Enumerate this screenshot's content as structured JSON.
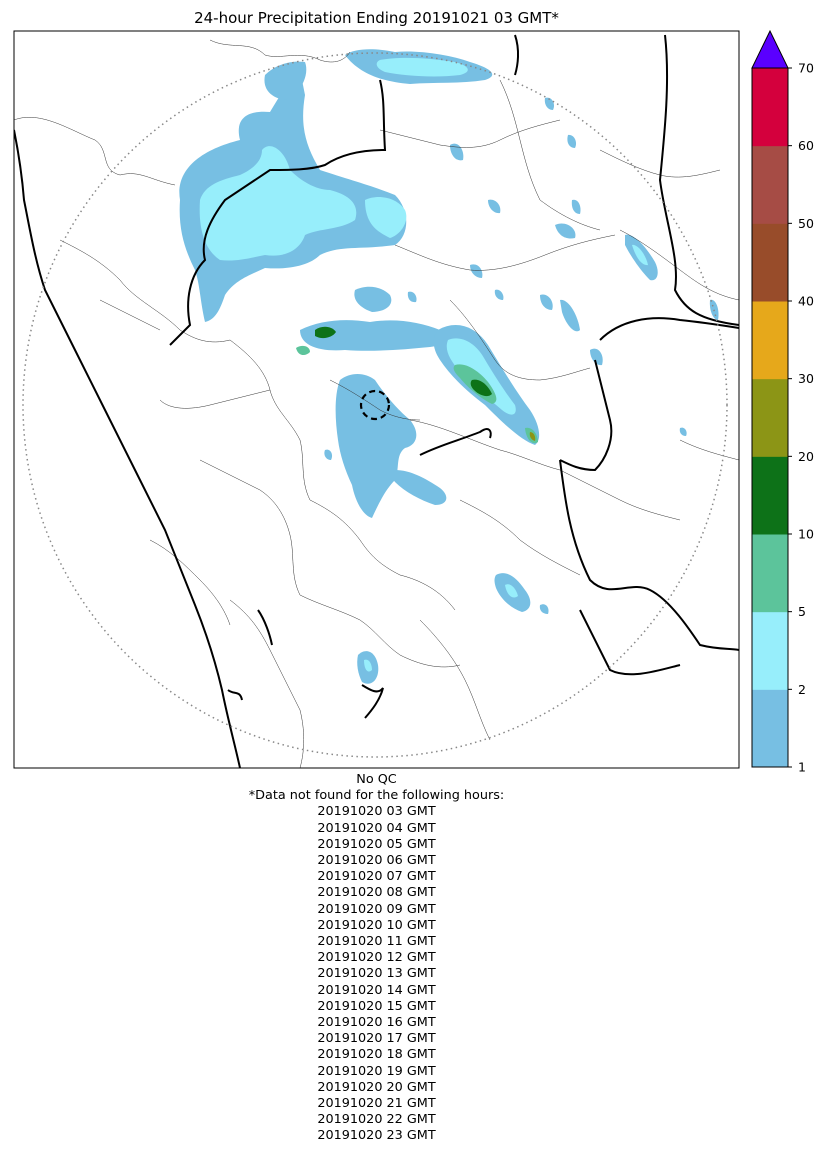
{
  "title": "24-hour Precipitation Ending 20191021 03 GMT*",
  "map": {
    "radar_range_ring": "dotted-circle",
    "radar_site_marker": "dashed-circle",
    "background": "#ffffff"
  },
  "colorbar": {
    "ticks": [
      "1",
      "2",
      "5",
      "10",
      "20",
      "30",
      "40",
      "50",
      "60",
      "70"
    ],
    "bins": [
      {
        "from": 1,
        "to": 2,
        "color": "#77bfe3"
      },
      {
        "from": 2,
        "to": 5,
        "color": "#97eefb"
      },
      {
        "from": 5,
        "to": 10,
        "color": "#5cc49b"
      },
      {
        "from": 10,
        "to": 20,
        "color": "#0d7218"
      },
      {
        "from": 20,
        "to": 30,
        "color": "#8c9516"
      },
      {
        "from": 30,
        "to": 40,
        "color": "#e6a81b"
      },
      {
        "from": 40,
        "to": 50,
        "color": "#984c2a"
      },
      {
        "from": 50,
        "to": 60,
        "color": "#a64c45"
      },
      {
        "from": 60,
        "to": 70,
        "color": "#d4003d"
      }
    ],
    "extend_color": "#5a00ff"
  },
  "footer": {
    "qc_status": "No QC",
    "missing_header": "*Data not found for the following hours:",
    "missing_hours": [
      "20191020 03 GMT",
      "20191020 04 GMT",
      "20191020 05 GMT",
      "20191020 06 GMT",
      "20191020 07 GMT",
      "20191020 08 GMT",
      "20191020 09 GMT",
      "20191020 10 GMT",
      "20191020 11 GMT",
      "20191020 12 GMT",
      "20191020 13 GMT",
      "20191020 14 GMT",
      "20191020 15 GMT",
      "20191020 16 GMT",
      "20191020 17 GMT",
      "20191020 18 GMT",
      "20191020 19 GMT",
      "20191020 20 GMT",
      "20191020 21 GMT",
      "20191020 22 GMT",
      "20191020 23 GMT"
    ]
  }
}
